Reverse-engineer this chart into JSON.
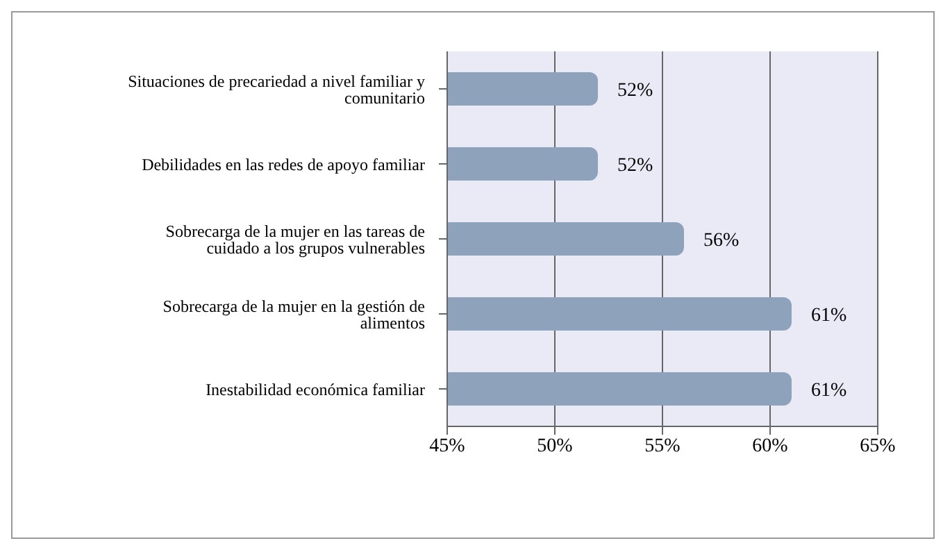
{
  "chart_data": {
    "type": "bar",
    "orientation": "horizontal",
    "categories": [
      "Situaciones de precariedad a nivel familiar y comunitario",
      "Debilidades en las redes de apoyo familiar",
      "Sobrecarga de la mujer en las tareas de cuidado a los grupos vulnerables",
      "Sobrecarga de la mujer en la gestión de alimentos",
      "Inestabilidad económica familiar"
    ],
    "values": [
      52,
      52,
      56,
      61,
      61
    ],
    "value_labels": [
      "52%",
      "52%",
      "56%",
      "61%",
      "61%"
    ],
    "color": "#8fa2bb",
    "xlim": [
      45,
      65
    ],
    "xticks": [
      {
        "value": 45,
        "label": "45%"
      },
      {
        "value": 50,
        "label": "50%"
      },
      {
        "value": 55,
        "label": "55%"
      },
      {
        "value": 60,
        "label": "60%"
      },
      {
        "value": 65,
        "label": "65%"
      }
    ],
    "grid": "x"
  }
}
